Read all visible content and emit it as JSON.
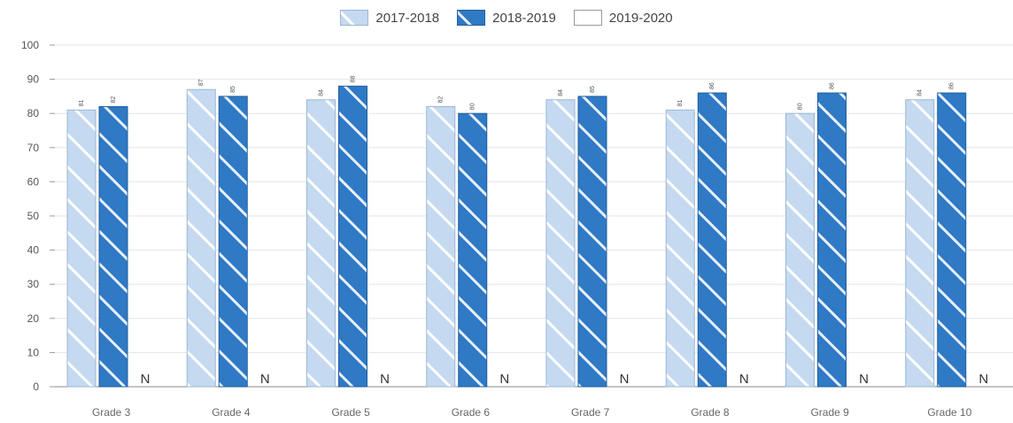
{
  "chart_data": {
    "type": "bar",
    "categories": [
      "Grade 3",
      "Grade 4",
      "Grade 5",
      "Grade 6",
      "Grade 7",
      "Grade 8",
      "Grade 9",
      "Grade 10"
    ],
    "series": [
      {
        "name": "2017-2018",
        "values": [
          81,
          87,
          84,
          82,
          84,
          81,
          80,
          84
        ],
        "color": "#c5daf0",
        "pattern": "hatch"
      },
      {
        "name": "2018-2019",
        "values": [
          82,
          85,
          88,
          80,
          85,
          86,
          86,
          86
        ],
        "color": "#2f79c5",
        "pattern": "hatch"
      },
      {
        "name": "2019-2020",
        "values": [
          null,
          null,
          null,
          null,
          null,
          null,
          null,
          null
        ],
        "color": "#ffffff",
        "pattern": "none",
        "missing_label": "N"
      }
    ],
    "ylim": [
      0,
      100
    ],
    "yticks": [
      "0",
      "10",
      "20",
      "30",
      "40",
      "50",
      "60",
      "70",
      "80",
      "90",
      "100"
    ],
    "grid": true,
    "legend_position": "top-center",
    "title": "",
    "xlabel": "",
    "ylabel": ""
  }
}
